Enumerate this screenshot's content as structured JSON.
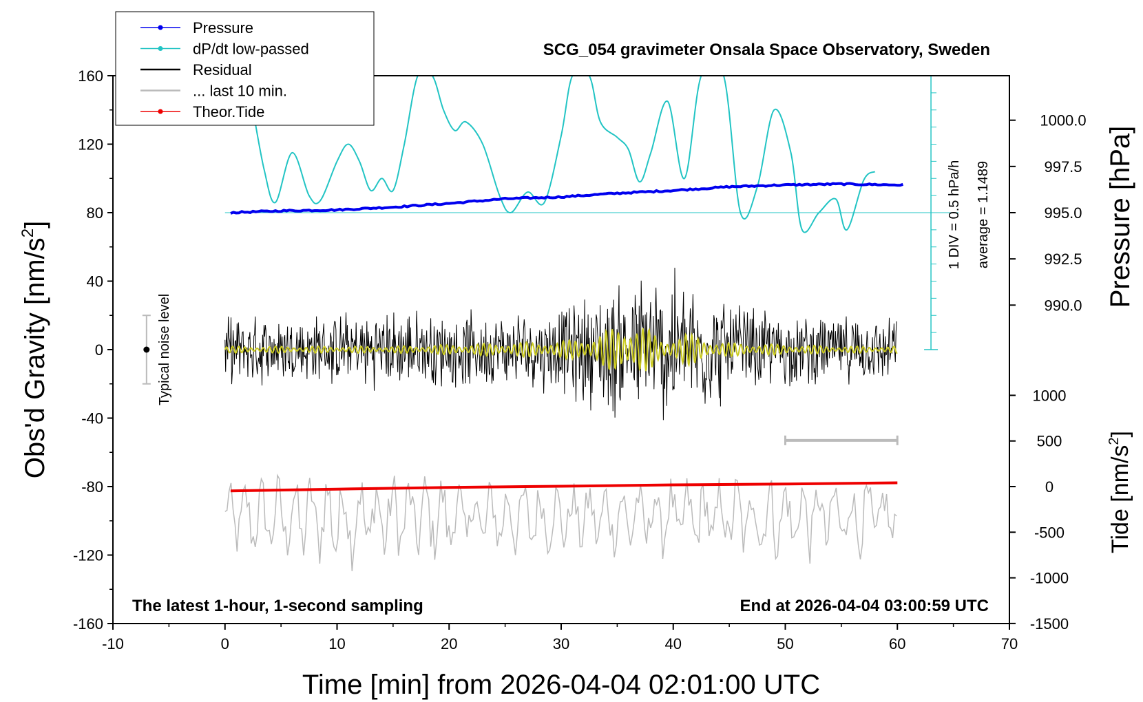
{
  "chart_data": {
    "type": "line",
    "title": "SCG_054 gravimeter Onsala Space Observatory, Sweden",
    "xlabel": "Time [min] from 2026-04-04 02:01:00 UTC",
    "ylabel": "Obs'd Gravity [nm/s",
    "ylabel_sup": "2",
    "ylabel_end": "]",
    "y2label": "Pressure [hPa]",
    "y3label": "Tide [nm/s",
    "y3label_sup": "2",
    "y3label_end": "]",
    "xlim": [
      -10,
      70
    ],
    "ylim": [
      -160,
      160
    ],
    "xticks": [
      -10,
      0,
      10,
      20,
      30,
      40,
      50,
      60,
      70
    ],
    "yticks": [
      160,
      120,
      80,
      40,
      0,
      -40,
      -80,
      -120,
      -160
    ],
    "pressure_axis": {
      "ticks": [
        "1000.0",
        "997.5",
        "995.0",
        "992.5",
        "990.0"
      ],
      "tick_values": [
        1000.0,
        997.5,
        995.0,
        992.5,
        990.0
      ],
      "gravity_at_995": 80,
      "gravity_per_hpa": 10.8
    },
    "tide_axis": {
      "ticks": [
        "1000",
        "500",
        "0",
        "-500",
        "-1000",
        "-1500"
      ],
      "tick_values": [
        1000,
        500,
        0,
        -500,
        -1000,
        -1500
      ],
      "gravity_at_0": -80,
      "gravity_per_unit": 0.0533
    },
    "ddiv_label": "1 DIV = 0.5 hPa/h",
    "average_label": "average = 1.1489",
    "noise_label": "Typical noise level",
    "noise_bar": {
      "x": -7,
      "center": 0,
      "half_range": 20
    },
    "last10_bar": {
      "x_start": 50,
      "x_end": 60,
      "y": -53
    },
    "bottom_left_note": "The latest 1-hour, 1-second sampling",
    "bottom_right_note": "End at 2026-04-04 03:00:59 UTC",
    "legend": [
      {
        "label": "Pressure",
        "color": "#0000ee",
        "marker": true
      },
      {
        "label": "dP/dt low-passed",
        "color": "#22c4c4",
        "marker": true
      },
      {
        "label": "Residual",
        "color": "#000000",
        "marker": false
      },
      {
        "label": "... last 10 min.",
        "color": "#bbbbbb",
        "marker": false
      },
      {
        "label": "Theor.Tide",
        "color": "#ee0000",
        "marker": true
      }
    ],
    "series": [
      {
        "name": "Pressure",
        "color": "#0000ee",
        "x": [
          0.5,
          5,
          10,
          15,
          20,
          25,
          30,
          35,
          40,
          45,
          50,
          55,
          60
        ],
        "y": [
          995.0,
          995.1,
          995.15,
          995.3,
          995.5,
          995.75,
          995.85,
          996.05,
          996.2,
          996.4,
          996.5,
          996.55,
          996.5
        ]
      },
      {
        "name": "dP/dt low-passed",
        "color": "#22c4c4",
        "x": [
          2.5,
          3.5,
          4.5,
          6,
          7.5,
          8.5,
          10,
          11,
          12,
          13,
          14,
          15,
          16,
          17.2,
          18.5,
          19.5,
          20.5,
          21.5,
          23,
          24.5,
          25.5,
          27,
          28.5,
          30,
          31,
          32.5,
          33.5,
          35,
          36,
          37,
          38,
          39.5,
          41,
          42.5,
          44.5,
          46,
          47.5,
          49,
          50.5,
          51.5,
          53,
          54.5,
          55.5,
          57,
          58
        ],
        "y": [
          140,
          105,
          86,
          115,
          90,
          87,
          110,
          120,
          110,
          93,
          100,
          93,
          120,
          160,
          160,
          140,
          128,
          133,
          120,
          90,
          80,
          92,
          86,
          125,
          160,
          160,
          133,
          124,
          117,
          98,
          115,
          145,
          100,
          160,
          160,
          80,
          95,
          140,
          115,
          70,
          80,
          88,
          70,
          99,
          104
        ]
      },
      {
        "name": "Residual",
        "color": "#000000",
        "x": [
          0,
          60
        ],
        "y": [
          0,
          0
        ],
        "amplitude": [
          0,
          5,
          10,
          15,
          20,
          25,
          30,
          35,
          40,
          45,
          50,
          55,
          60
        ],
        "amplitude_values": [
          16,
          18,
          18,
          20,
          19,
          18,
          22,
          35,
          40,
          25,
          18,
          17,
          16
        ]
      },
      {
        "name": "Residual low-passed",
        "color": "#cccc22",
        "x": [
          0,
          60
        ],
        "y": [
          0,
          0
        ],
        "amplitude": [
          0,
          5,
          10,
          15,
          20,
          25,
          30,
          33,
          35,
          37,
          39,
          41,
          43,
          45,
          50,
          55,
          60
        ],
        "amplitude_values": [
          2,
          2,
          2,
          2,
          3,
          4,
          5,
          8,
          14,
          16,
          6,
          10,
          6,
          4,
          3,
          2,
          2
        ]
      },
      {
        "name": "... last 10 min.",
        "color": "#bbbbbb",
        "x": [
          0,
          60
        ],
        "y": [
          -98,
          -98
        ],
        "amplitude": [
          0,
          10,
          20,
          30,
          40,
          50,
          60
        ],
        "amplitude_values": [
          20,
          28,
          24,
          20,
          22,
          26,
          20
        ]
      },
      {
        "name": "Theor.Tide",
        "color": "#ee0000",
        "x": [
          0.5,
          10,
          20,
          30,
          40,
          50,
          60
        ],
        "y": [
          -82.5,
          -81.5,
          -80.5,
          -79.8,
          -79,
          -78.5,
          -77.8
        ]
      }
    ]
  }
}
